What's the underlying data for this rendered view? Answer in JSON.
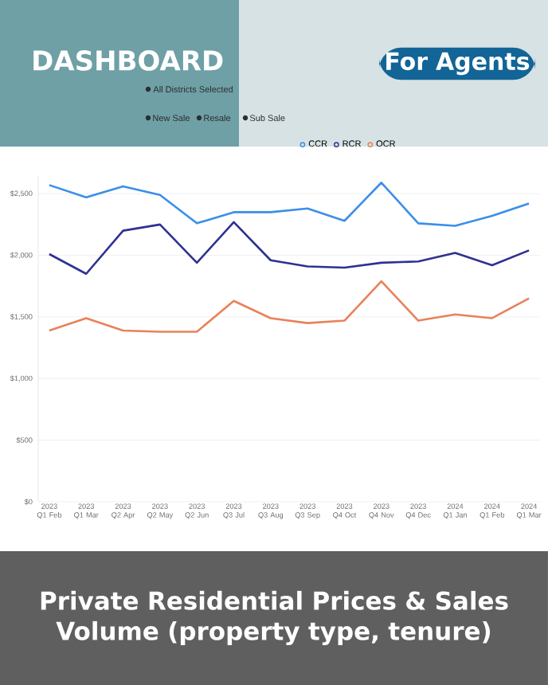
{
  "chart_data": {
    "type": "line",
    "title": "DASHBOARD",
    "annotations": [
      "For Agents",
      "All Districts Selected",
      "New Sale",
      "Resale",
      "Sub Sale",
      "Private Residential Prices & Sales Volume (property type, tenure)"
    ],
    "categories": [
      "2023 Q1 Feb",
      "2023 Q1 Mar",
      "2023 Q2 Apr",
      "2023 Q2 May",
      "2023 Q2 Jun",
      "2023 Q3 Jul",
      "2023 Q3 Aug",
      "2023 Q3 Sep",
      "2023 Q4 Oct",
      "2023 Q4 Nov",
      "2023 Q4 Dec",
      "2024 Q1 Jan",
      "2024 Q1 Feb",
      "2024 Q1 Mar"
    ],
    "series": [
      {
        "name": "CCR",
        "color": "#3b8fe8",
        "values": [
          2570,
          2470,
          2560,
          2490,
          2260,
          2350,
          2350,
          2380,
          2280,
          2590,
          2260,
          2240,
          2320,
          2420
        ]
      },
      {
        "name": "RCR",
        "color": "#2e3192",
        "values": [
          2010,
          1850,
          2200,
          2250,
          1940,
          2270,
          1960,
          1910,
          1900,
          1940,
          1950,
          2020,
          1920,
          2040
        ]
      },
      {
        "name": "OCR",
        "color": "#e8825a",
        "values": [
          1390,
          1490,
          1390,
          1380,
          1380,
          1630,
          1490,
          1450,
          1470,
          1790,
          1470,
          1520,
          1490,
          1650
        ]
      }
    ],
    "ylim": [
      0,
      2650
    ],
    "yticks": [
      {
        "value": 0,
        "label": "$0"
      },
      {
        "value": 500,
        "label": "$500"
      },
      {
        "value": 1000,
        "label": "$1,000"
      },
      {
        "value": 1500,
        "label": "$1,500"
      },
      {
        "value": 2000,
        "label": "$2,000"
      },
      {
        "value": 2500,
        "label": "$2,500"
      }
    ],
    "grid": "y",
    "legend": "top",
    "marker": "none",
    "line_style": "solid"
  }
}
